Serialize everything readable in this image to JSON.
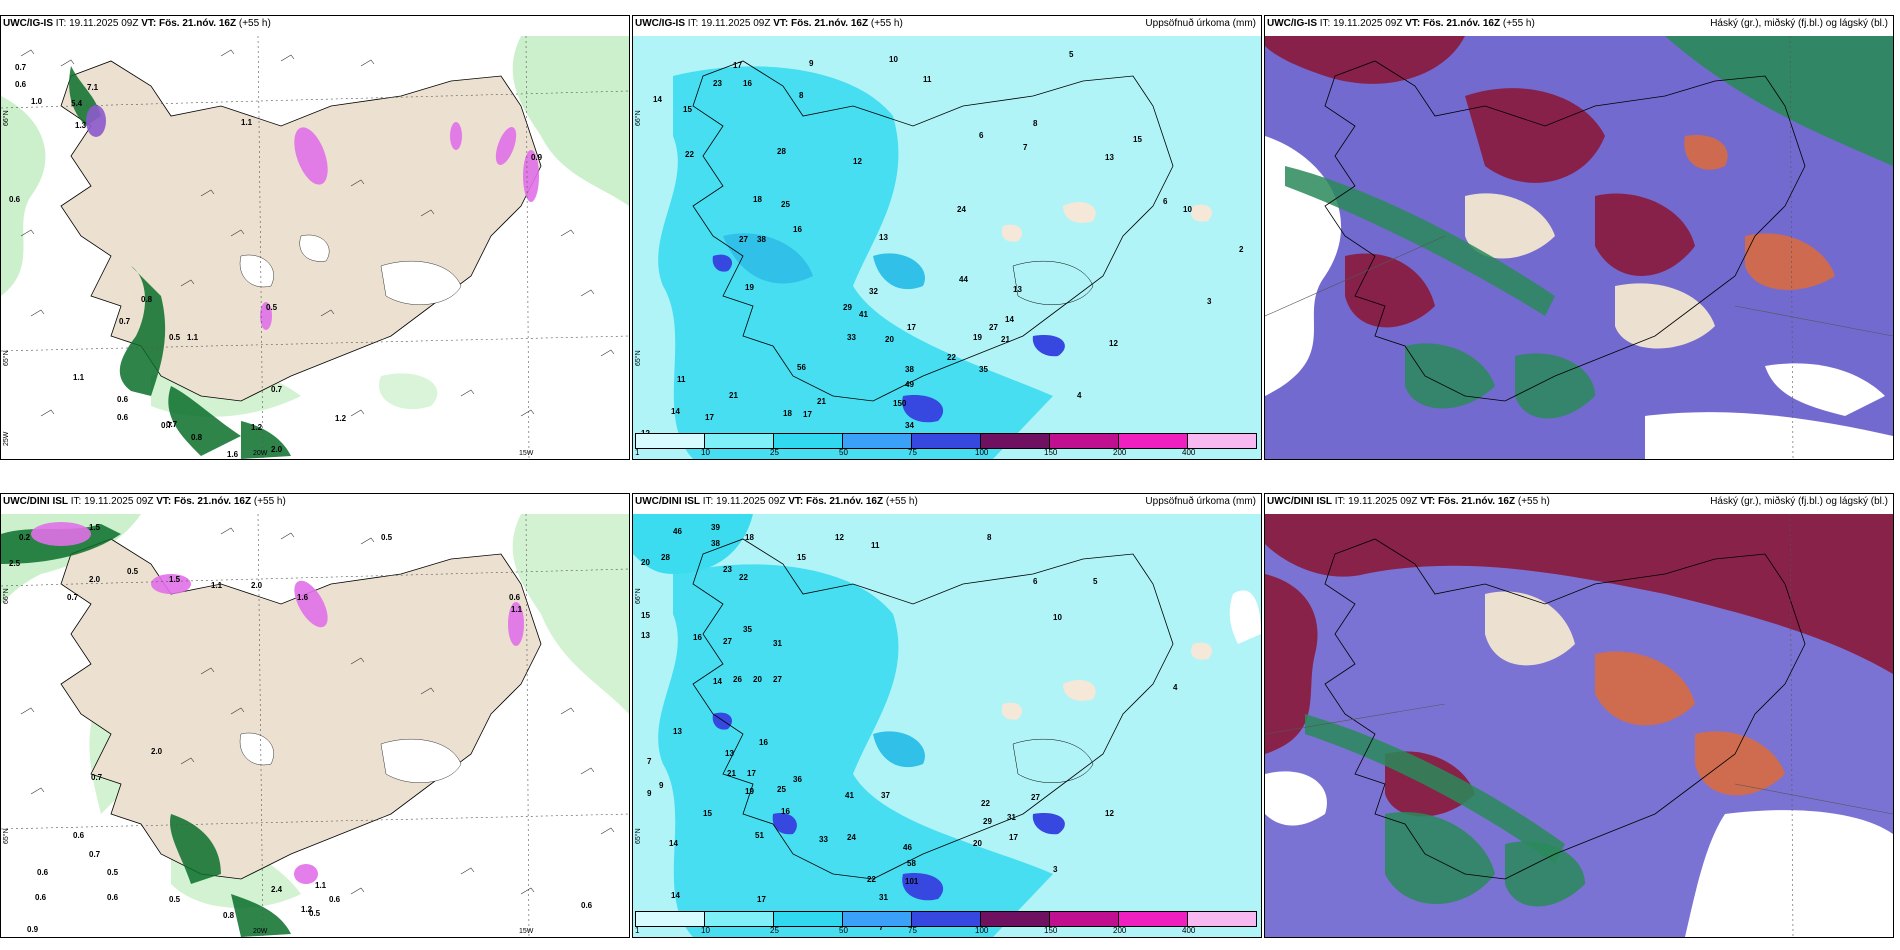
{
  "panels": [
    {
      "id": "top-left",
      "model": "UWC/IG-IS",
      "it_label": "IT:",
      "it_value": "19.11.2025 09Z",
      "vt_label": "VT:",
      "vt_value": "Fös. 21.nóv. 16Z",
      "lead": "(+55 h)",
      "right_title": "",
      "axis_labels": [
        "66°N",
        "65°N",
        "25W",
        "20W",
        "15W"
      ],
      "values": [
        "0.7",
        "0.6",
        "1.0",
        "7.1",
        "5.4",
        "1.1",
        "0.6",
        "0.8",
        "0.7",
        "0.6",
        "0.5",
        "0.7",
        "1.1",
        "1.1",
        "0.7",
        "0.5",
        "0.6",
        "0.7",
        "0.8",
        "1.2",
        "1.6",
        "1.2",
        "2.0",
        "0.9",
        "1.3"
      ]
    },
    {
      "id": "top-middle",
      "model": "UWC/IG-IS",
      "it_label": "IT:",
      "it_value": "19.11.2025 09Z",
      "vt_label": "VT:",
      "vt_value": "Fös. 21.nóv. 16Z",
      "lead": "(+55 h)",
      "right_title": "Uppsöfnuð úrkoma (mm)",
      "axis_labels": [
        "66°N",
        "65°N"
      ],
      "values": [
        "10",
        "9",
        "17",
        "23",
        "16",
        "15",
        "14",
        "22",
        "28",
        "38",
        "27",
        "25",
        "18",
        "16",
        "19",
        "13",
        "12",
        "17",
        "21",
        "18",
        "21",
        "17",
        "14",
        "12",
        "11",
        "56",
        "44",
        "33",
        "41",
        "32",
        "29",
        "20",
        "17",
        "38",
        "49",
        "34",
        "150",
        "22",
        "35",
        "19",
        "27",
        "21",
        "14",
        "13",
        "12",
        "24",
        "5",
        "4",
        "3",
        "2",
        "6",
        "7",
        "8",
        "10",
        "11",
        "13",
        "15",
        "8",
        "6"
      ],
      "colorbar_ticks": [
        "1",
        "10",
        "25",
        "50",
        "75",
        "100",
        "150",
        "200",
        "400"
      ]
    },
    {
      "id": "top-right",
      "model": "UWC/IG-IS",
      "it_label": "IT:",
      "it_value": "19.11.2025 09Z",
      "vt_label": "VT:",
      "vt_value": "Fös. 21.nóv. 16Z",
      "lead": "(+55 h)",
      "right_title": "Háský (gr.), miðský (fj.bl.) og lágský (bl.)",
      "axis_labels": [],
      "values": []
    },
    {
      "id": "bottom-left",
      "model": "UWC/DINI ISL",
      "it_label": "IT:",
      "it_value": "19.11.2025 09Z",
      "vt_label": "VT:",
      "vt_value": "Fös. 21.nóv. 16Z",
      "lead": "(+55 h)",
      "right_title": "",
      "axis_labels": [
        "66°N",
        "65°N",
        "20W",
        "15W"
      ],
      "values": [
        "0.2",
        "1.5",
        "2.5",
        "0.5",
        "0.7",
        "2.0",
        "1.5",
        "0.5",
        "1.6",
        "0.6",
        "1.1",
        "2.0",
        "0.7",
        "2.0",
        "0.6",
        "0.7",
        "0.5",
        "0.6",
        "0.6",
        "0.5",
        "0.6",
        "0.8",
        "0.9",
        "1.1",
        "1.2",
        "2.4",
        "0.6",
        "1.1",
        "0.5",
        "0.6"
      ]
    },
    {
      "id": "bottom-middle",
      "model": "UWC/DINI ISL",
      "it_label": "IT:",
      "it_value": "19.11.2025 09Z",
      "vt_label": "VT:",
      "vt_value": "Fös. 21.nóv. 16Z",
      "lead": "(+55 h)",
      "right_title": "Uppsöfnuð úrkoma (mm)",
      "axis_labels": [
        "66°N",
        "65°N"
      ],
      "values": [
        "46",
        "39",
        "38",
        "28",
        "20",
        "15",
        "13",
        "23",
        "22",
        "27",
        "16",
        "35",
        "31",
        "27",
        "26",
        "20",
        "14",
        "13",
        "16",
        "17",
        "21",
        "19",
        "15",
        "25",
        "13",
        "9",
        "7",
        "14",
        "16",
        "17",
        "14",
        "22",
        "31",
        "24",
        "33",
        "41",
        "36",
        "51",
        "37",
        "46",
        "58",
        "101",
        "20",
        "31",
        "17",
        "29",
        "27",
        "22",
        "12",
        "11",
        "18",
        "15",
        "10",
        "8",
        "6",
        "5",
        "4",
        "3",
        "7",
        "9",
        "12"
      ],
      "colorbar_ticks": [
        "1",
        "10",
        "25",
        "50",
        "75",
        "100",
        "150",
        "200",
        "400"
      ]
    },
    {
      "id": "bottom-right",
      "model": "UWC/DINI ISL",
      "it_label": "IT:",
      "it_value": "19.11.2025 09Z",
      "vt_label": "VT:",
      "vt_value": "Fös. 21.nóv. 16Z",
      "lead": "(+55 h)",
      "right_title": "Háský (gr.), miðský (fj.bl.) og lágský (bl.)",
      "axis_labels": [],
      "values": []
    }
  ],
  "colors": {
    "land": "#ece0d0",
    "sea_precip": "#b0f4f8",
    "cyan_precip": "#3cdcf0",
    "green_light": "#bfecbf",
    "green_dark": "#0a6e2a",
    "pink": "#e070e8",
    "purple": "#8c5acc",
    "high_cloud": "#2a8a5a",
    "mid_cloud": "#5a50c8",
    "low_cloud": "#8a1a3a",
    "orange": "#d86a40"
  },
  "colorbar_colors": [
    "#d8fbff",
    "#80f0f8",
    "#30d8f0",
    "#3aa0f8",
    "#3648e0",
    "#701060",
    "#c01090",
    "#f020c0",
    "#f8b8f0"
  ]
}
